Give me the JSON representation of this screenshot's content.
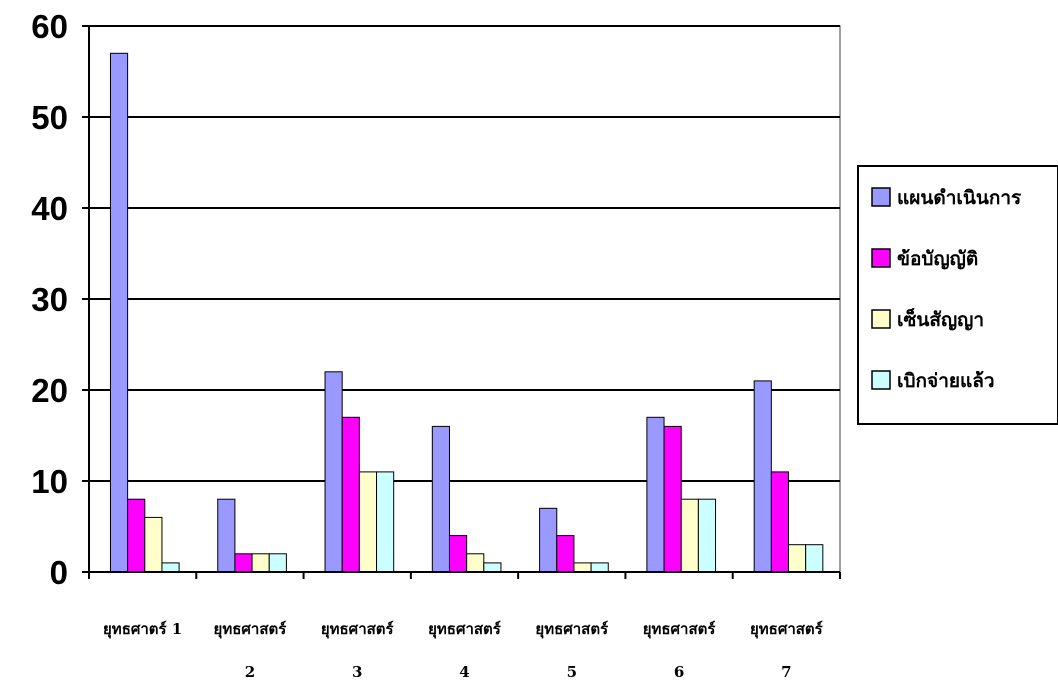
{
  "chart_data": {
    "type": "bar",
    "title": "",
    "xlabel": "",
    "ylabel": "",
    "ylim": [
      0,
      60
    ],
    "yticks": [
      "0",
      "10",
      "20",
      "30",
      "40",
      "50",
      "60"
    ],
    "grid": true,
    "legend_position": "right",
    "categories": [
      [
        "ยุทธศาตร์ 1",
        ""
      ],
      [
        "ยุทธศาสตร์",
        "2"
      ],
      [
        "ยุทธศาสตร์",
        "3"
      ],
      [
        "ยุทธศาสตร์",
        "4"
      ],
      [
        "ยุทธศาสตร์",
        "5"
      ],
      [
        "ยุทธศาสตร์",
        "6"
      ],
      [
        "ยุทธศาสตร์",
        "7"
      ]
    ],
    "series": [
      {
        "name": "แผนดำเนินการ",
        "color": "#9999FF",
        "values": [
          57,
          8,
          22,
          16,
          7,
          17,
          21
        ]
      },
      {
        "name": "ข้อบัญญัติ",
        "color": "#FF00FF",
        "values": [
          8,
          2,
          17,
          4,
          4,
          16,
          11
        ]
      },
      {
        "name": "เซ็นสัญญา",
        "color": "#FFFFCC",
        "values": [
          6,
          2,
          11,
          2,
          1,
          8,
          3
        ]
      },
      {
        "name": "เบิกจ่ายแล้ว",
        "color": "#CCFFFF",
        "values": [
          1,
          2,
          11,
          1,
          1,
          8,
          3
        ]
      }
    ]
  }
}
